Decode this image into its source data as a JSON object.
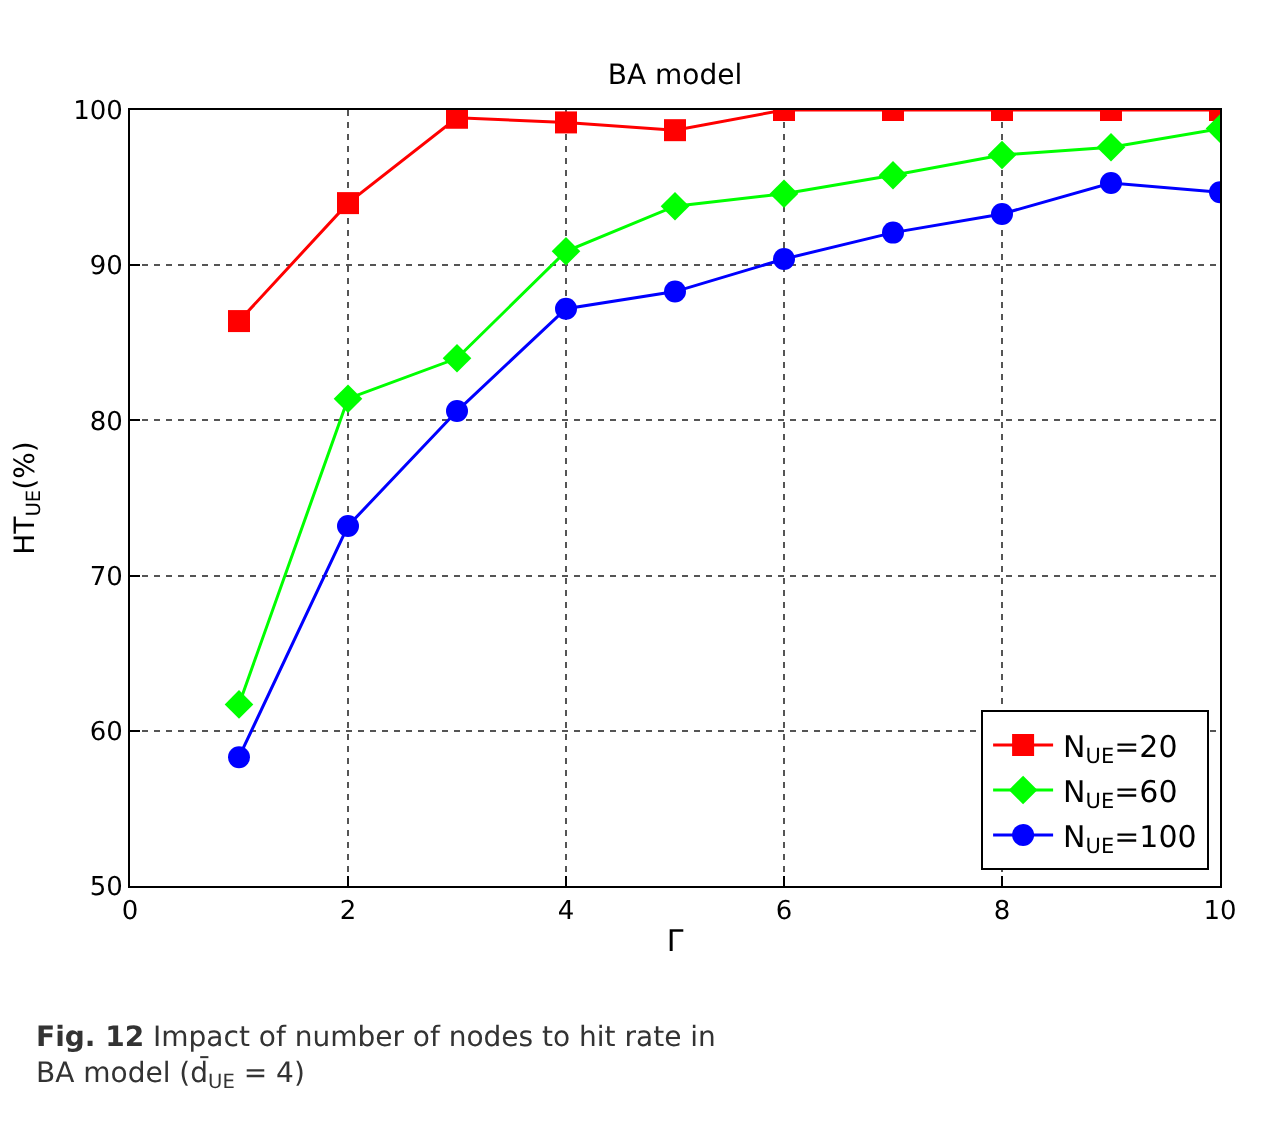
{
  "chart_data": {
    "type": "line",
    "title": "BA model",
    "xlabel": "Γ",
    "ylabel": "HT$_{UE}$(%)",
    "x": [
      1,
      2,
      3,
      4,
      5,
      6,
      7,
      8,
      9,
      10
    ],
    "series": [
      {
        "name": "N$_{UE}$=20",
        "color": "#ff0000",
        "marker": "square",
        "values": [
          86.4,
          94.0,
          99.5,
          99.2,
          98.7,
          100,
          100,
          100,
          100,
          100
        ]
      },
      {
        "name": "N$_{UE}$=60",
        "color": "#00ff00",
        "marker": "diamond",
        "values": [
          61.7,
          81.4,
          84.0,
          90.9,
          93.8,
          94.6,
          95.8,
          97.1,
          97.6,
          98.8
        ]
      },
      {
        "name": "N$_{UE}$=100",
        "color": "#0000ff",
        "marker": "circle",
        "values": [
          58.3,
          73.2,
          80.6,
          87.2,
          88.3,
          90.4,
          92.1,
          93.3,
          95.3,
          94.7
        ]
      }
    ],
    "xlim": [
      0,
      10
    ],
    "xticks": [
      0,
      2,
      4,
      6,
      8,
      10
    ],
    "ylim": [
      50,
      100
    ],
    "yticks": [
      50,
      60,
      70,
      80,
      90,
      100
    ],
    "grid": true,
    "line_style": "solid",
    "legend": "bottom right",
    "annotations": [
      "Fig. 12 Impact of number of nodes to hit rate in BA model (d̄$_{UE}$ = 4)"
    ]
  }
}
